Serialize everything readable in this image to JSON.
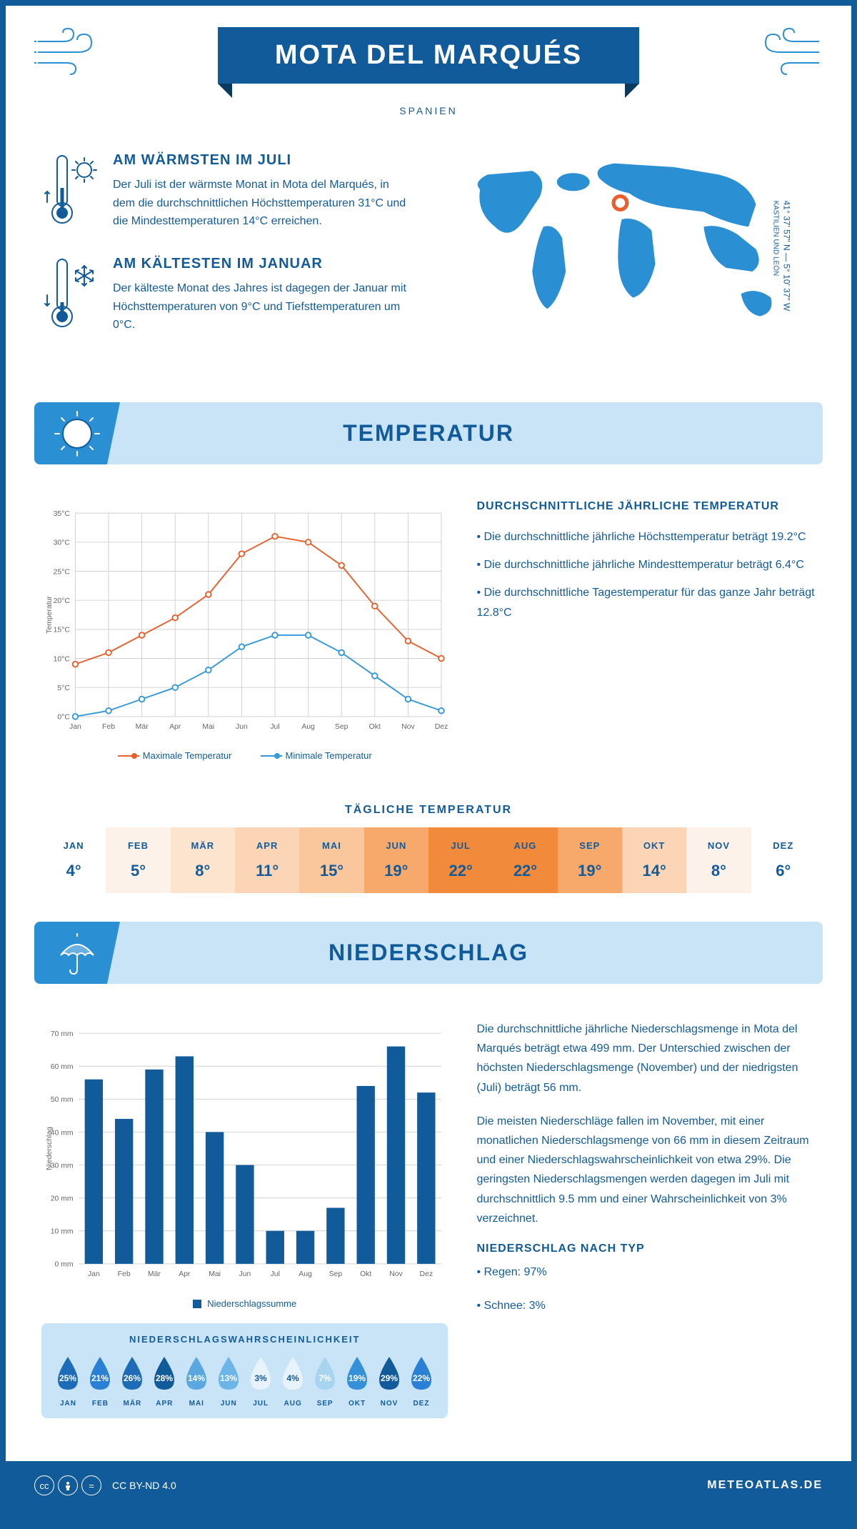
{
  "header": {
    "title": "MOTA DEL MARQUÉS",
    "subtitle": "SPANIEN"
  },
  "intro": {
    "warm": {
      "title": "AM WÄRMSTEN IM JULI",
      "text": "Der Juli ist der wärmste Monat in Mota del Marqués, in dem die durchschnittlichen Höchsttemperaturen 31°C und die Mindesttemperaturen 14°C erreichen."
    },
    "cold": {
      "title": "AM KÄLTESTEN IM JANUAR",
      "text": "Der kälteste Monat des Jahres ist dagegen der Januar mit Höchsttemperaturen von 9°C und Tiefsttemperaturen um 0°C."
    },
    "coords": "41° 37' 57\" N — 5° 10' 37\" W",
    "region": "KASTILIEN UND LEÓN"
  },
  "temp_section": {
    "title": "TEMPERATUR",
    "info_title": "DURCHSCHNITTLICHE JÄHRLICHE TEMPERATUR",
    "bullets": [
      "• Die durchschnittliche jährliche Höchsttemperatur beträgt 19.2°C",
      "• Die durchschnittliche jährliche Mindesttemperatur beträgt 6.4°C",
      "• Die durchschnittliche Tagestemperatur für das ganze Jahr beträgt 12.8°C"
    ],
    "chart": {
      "months": [
        "Jan",
        "Feb",
        "Mär",
        "Apr",
        "Mai",
        "Jun",
        "Jul",
        "Aug",
        "Sep",
        "Okt",
        "Nov",
        "Dez"
      ],
      "max_temp": [
        9,
        11,
        14,
        17,
        21,
        28,
        31,
        30,
        26,
        19,
        13,
        10
      ],
      "min_temp": [
        0,
        1,
        3,
        5,
        8,
        12,
        14,
        14,
        11,
        7,
        3,
        1
      ],
      "ylim": [
        0,
        35
      ],
      "ytick_step": 5,
      "ylabel": "Temperatur",
      "max_color": "#e8602c",
      "min_color": "#3498db",
      "grid_color": "#d0d0d0",
      "axis_color": "#666",
      "line_width": 2,
      "marker_size": 4
    },
    "legend_max": "Maximale Temperatur",
    "legend_min": "Minimale Temperatur",
    "daily_title": "TÄGLICHE TEMPERATUR",
    "daily": {
      "months": [
        "JAN",
        "FEB",
        "MÄR",
        "APR",
        "MAI",
        "JUN",
        "JUL",
        "AUG",
        "SEP",
        "OKT",
        "NOV",
        "DEZ"
      ],
      "values": [
        "4°",
        "5°",
        "8°",
        "11°",
        "15°",
        "19°",
        "22°",
        "22°",
        "19°",
        "14°",
        "8°",
        "6°"
      ],
      "colors": [
        "#ffffff",
        "#fdf2e9",
        "#fce4cf",
        "#fbd5b5",
        "#f9c79b",
        "#f7a86b",
        "#f28a3c",
        "#f28a3c",
        "#f7a86b",
        "#fbd5b5",
        "#fdf2e9",
        "#ffffff"
      ]
    }
  },
  "precip_section": {
    "title": "NIEDERSCHLAG",
    "chart": {
      "months": [
        "Jan",
        "Feb",
        "Mär",
        "Apr",
        "Mai",
        "Jun",
        "Jul",
        "Aug",
        "Sep",
        "Okt",
        "Nov",
        "Dez"
      ],
      "values": [
        56,
        44,
        59,
        63,
        40,
        30,
        10,
        10,
        17,
        54,
        66,
        52
      ],
      "ylim": [
        0,
        70
      ],
      "ytick_step": 10,
      "ylabel": "Niederschlag",
      "bar_color": "#125b9a",
      "grid_color": "#d0d0d0",
      "axis_color": "#666",
      "bar_width": 0.6
    },
    "legend": "Niederschlagssumme",
    "text1": "Die durchschnittliche jährliche Niederschlagsmenge in Mota del Marqués beträgt etwa 499 mm. Der Unterschied zwischen der höchsten Niederschlagsmenge (November) und der niedrigsten (Juli) beträgt 56 mm.",
    "text2": "Die meisten Niederschläge fallen im November, mit einer monatlichen Niederschlagsmenge von 66 mm in diesem Zeitraum und einer Niederschlagswahrscheinlichkeit von etwa 29%. Die geringsten Niederschlagsmengen werden dagegen im Juli mit durchschnittlich 9.5 mm und einer Wahrscheinlichkeit von 3% verzeichnet.",
    "type_title": "NIEDERSCHLAG NACH TYP",
    "type_rain": "• Regen: 97%",
    "type_snow": "• Schnee: 3%",
    "prob_title": "NIEDERSCHLAGSWAHRSCHEINLICHKEIT",
    "prob": {
      "months": [
        "JAN",
        "FEB",
        "MÄR",
        "APR",
        "MAI",
        "JUN",
        "JUL",
        "AUG",
        "SEP",
        "OKT",
        "NOV",
        "DEZ"
      ],
      "values": [
        "25%",
        "21%",
        "26%",
        "28%",
        "14%",
        "13%",
        "3%",
        "4%",
        "7%",
        "19%",
        "29%",
        "22%"
      ],
      "colors": [
        "#1e6bb8",
        "#2980d4",
        "#1e6bb8",
        "#125b9a",
        "#5ba7e0",
        "#6bb5e8",
        "#e8f2fa",
        "#e8f2fa",
        "#a8d4f0",
        "#3690d8",
        "#125b9a",
        "#2980d4"
      ],
      "text_colors": [
        "#fff",
        "#fff",
        "#fff",
        "#fff",
        "#fff",
        "#fff",
        "#125b9a",
        "#125b9a",
        "#fff",
        "#fff",
        "#fff",
        "#fff"
      ]
    }
  },
  "footer": {
    "license": "CC BY-ND 4.0",
    "site": "METEOATLAS.DE"
  },
  "colors": {
    "primary": "#125b9a",
    "light_blue": "#c9e4f7",
    "accent_blue": "#2b8fd4"
  }
}
